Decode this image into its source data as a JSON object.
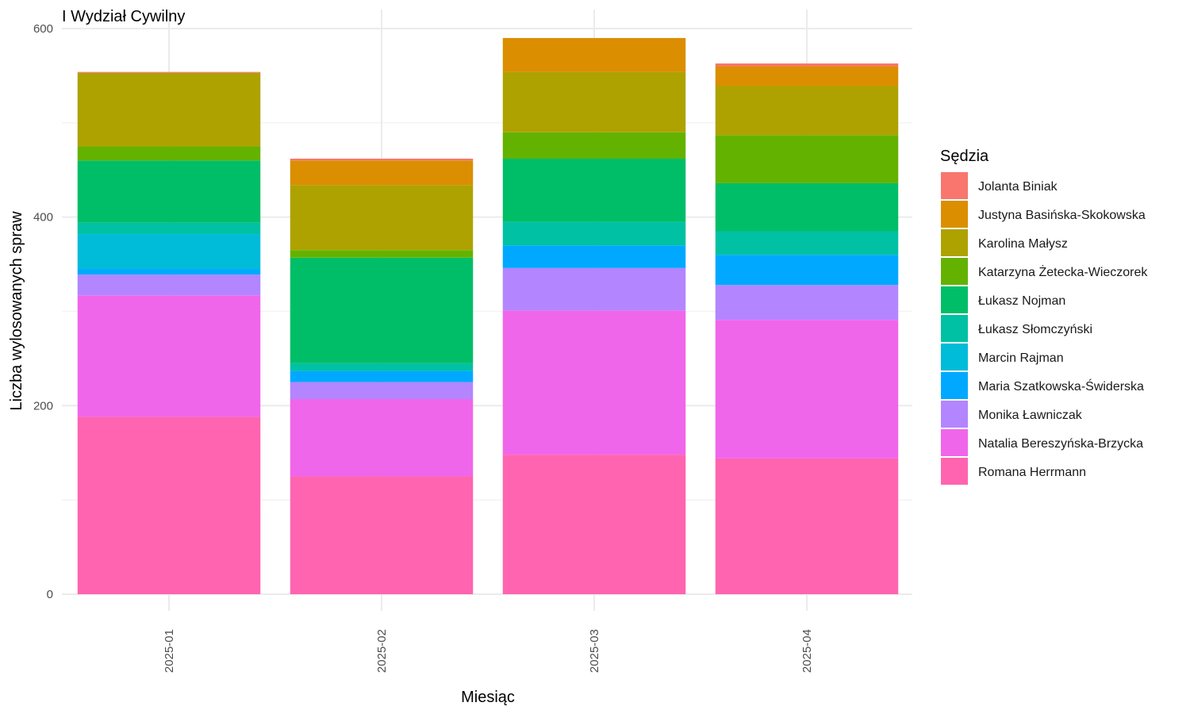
{
  "chart_data": {
    "type": "bar",
    "stacked": true,
    "title": "I Wydział Cywilny",
    "xlabel": "Miesiąc",
    "ylabel": "Liczba wylosowanych spraw",
    "ylim": [
      0,
      600
    ],
    "yticks": [
      0,
      200,
      400,
      600
    ],
    "categories": [
      "2025-01",
      "2025-02",
      "2025-03",
      "2025-04"
    ],
    "legend": {
      "title": "Sędzia",
      "position": "right"
    },
    "grid": true,
    "series": [
      {
        "name": "Romana Herrmann",
        "color": "#FF64B0",
        "values": [
          188,
          125,
          148,
          144
        ]
      },
      {
        "name": "Natalia Bereszyńska-Brzycka",
        "color": "#F066EA",
        "values": [
          129,
          82,
          153,
          147
        ]
      },
      {
        "name": "Monika Ławniczak",
        "color": "#B385FF",
        "values": [
          22,
          18,
          45,
          37
        ]
      },
      {
        "name": "Maria Szatkowska-Świderska",
        "color": "#00A9FF",
        "values": [
          6,
          12,
          24,
          32
        ]
      },
      {
        "name": "Marcin Rajman",
        "color": "#00BCD8",
        "values": [
          37,
          0,
          0,
          0
        ]
      },
      {
        "name": "Łukasz Słomczyński",
        "color": "#00C1A3",
        "values": [
          12,
          8,
          25,
          25
        ]
      },
      {
        "name": "Łukasz Nojman",
        "color": "#00BE67",
        "values": [
          66,
          112,
          67,
          51
        ]
      },
      {
        "name": "Katarzyna Żetecka-Wieczorek",
        "color": "#64B200",
        "values": [
          15,
          8,
          28,
          51
        ]
      },
      {
        "name": "Karolina Małysz",
        "color": "#AEA200",
        "values": [
          78,
          69,
          64,
          52
        ]
      },
      {
        "name": "Justyna Basińska-Skokowska",
        "color": "#DB8E00",
        "values": [
          0,
          26,
          36,
          21
        ]
      },
      {
        "name": "Jolanta Biniak",
        "color": "#F8766D",
        "values": [
          1,
          2,
          0,
          3
        ]
      }
    ]
  }
}
